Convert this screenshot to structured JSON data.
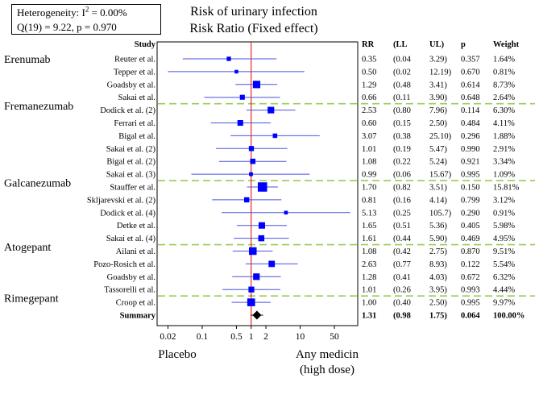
{
  "heterogeneity": {
    "line1_prefix": "Heterogeneity: I",
    "line1_sup": "2",
    "line1_suffix": " = 0.00%",
    "line2": "Q(19) = 9.22,  p = 0.970"
  },
  "title": {
    "line1": "Risk of urinary infection",
    "line2": "Risk Ratio (Fixed effect)"
  },
  "columns": {
    "study": "Study",
    "rr": "RR",
    "ll": "(LL",
    "ul": "UL)",
    "p": "p",
    "weight": "Weight"
  },
  "bottom_labels": {
    "left": "Placebo",
    "right_line1": "Any medicin",
    "right_line2": "(high dose)"
  },
  "colors": {
    "marker": "#0000ff",
    "ci_line": "#4a55dd",
    "reference_line": "#dd0000",
    "group_divider": "#99cc55",
    "summary": "#000000"
  },
  "chart_data": {
    "type": "forest",
    "title": "Risk of urinary infection — Risk Ratio (Fixed effect)",
    "xscale": "log",
    "xlim": [
      0.012,
      150
    ],
    "xticks": [
      0.02,
      0.1,
      0.5,
      1,
      2,
      10,
      50
    ],
    "xtick_labels": [
      "0.02",
      "0.1",
      "0.5",
      "1",
      "2",
      "10",
      "50"
    ],
    "reference_value": 1,
    "groups": [
      {
        "name": "Erenumab",
        "start_row": 0
      },
      {
        "name": "Fremanezumab",
        "start_row": 4
      },
      {
        "name": "Galcanezumab",
        "start_row": 10
      },
      {
        "name": "Atogepant",
        "start_row": 15
      },
      {
        "name": "Rimegepant",
        "start_row": 19
      }
    ],
    "studies": [
      {
        "study": "Reuter et al.",
        "rr": 0.35,
        "ll": 0.04,
        "ul": 3.29,
        "rr_txt": "0.35",
        "ll_txt": "(0.04",
        "ul_txt": "3.29)",
        "p_txt": "0.357",
        "weight_txt": "1.64%",
        "weight": 1.64
      },
      {
        "study": "Tepper et al.",
        "rr": 0.5,
        "ll": 0.02,
        "ul": 12.19,
        "rr_txt": "0.50",
        "ll_txt": "(0.02",
        "ul_txt": "12.19)",
        "p_txt": "0.670",
        "weight_txt": "0.81%",
        "weight": 0.81
      },
      {
        "study": "Goadsby et al.",
        "rr": 1.29,
        "ll": 0.48,
        "ul": 3.41,
        "rr_txt": "1.29",
        "ll_txt": "(0.48",
        "ul_txt": "3.41)",
        "p_txt": "0.614",
        "weight_txt": "8.73%",
        "weight": 8.73
      },
      {
        "study": "Sakai et al.",
        "rr": 0.66,
        "ll": 0.11,
        "ul": 3.9,
        "rr_txt": "0.66",
        "ll_txt": "(0.11",
        "ul_txt": "3.90)",
        "p_txt": "0.648",
        "weight_txt": "2.64%",
        "weight": 2.64
      },
      {
        "study": "Dodick et al. (2)",
        "rr": 2.53,
        "ll": 0.8,
        "ul": 7.96,
        "rr_txt": "2.53",
        "ll_txt": "(0.80",
        "ul_txt": "7.96)",
        "p_txt": "0.114",
        "weight_txt": "6.30%",
        "weight": 6.3
      },
      {
        "study": "Ferrari et al.",
        "rr": 0.6,
        "ll": 0.15,
        "ul": 2.5,
        "rr_txt": "0.60",
        "ll_txt": "(0.15",
        "ul_txt": "2.50)",
        "p_txt": "0.484",
        "weight_txt": "4.11%",
        "weight": 4.11
      },
      {
        "study": "Bigal et al.",
        "rr": 3.07,
        "ll": 0.38,
        "ul": 25.1,
        "rr_txt": "3.07",
        "ll_txt": "(0.38",
        "ul_txt": "25.10)",
        "p_txt": "0.296",
        "weight_txt": "1.88%",
        "weight": 1.88
      },
      {
        "study": "Sakai et al. (2)",
        "rr": 1.01,
        "ll": 0.19,
        "ul": 5.47,
        "rr_txt": "1.01",
        "ll_txt": "(0.19",
        "ul_txt": "5.47)",
        "p_txt": "0.990",
        "weight_txt": "2.91%",
        "weight": 2.91
      },
      {
        "study": "Bigal et al. (2)",
        "rr": 1.08,
        "ll": 0.22,
        "ul": 5.24,
        "rr_txt": "1.08",
        "ll_txt": "(0.22",
        "ul_txt": "5.24)",
        "p_txt": "0.921",
        "weight_txt": "3.34%",
        "weight": 3.34
      },
      {
        "study": "Sakai et al. (3)",
        "rr": 0.99,
        "ll": 0.06,
        "ul": 15.67,
        "rr_txt": "0.99",
        "ll_txt": "(0.06",
        "ul_txt": "15.67)",
        "p_txt": "0.995",
        "weight_txt": "1.09%",
        "weight": 1.09
      },
      {
        "study": "Stauffer et al.",
        "rr": 1.7,
        "ll": 0.82,
        "ul": 3.51,
        "rr_txt": "1.70",
        "ll_txt": "(0.82",
        "ul_txt": "3.51)",
        "p_txt": "0.150",
        "weight_txt": "15.81%",
        "weight": 15.81
      },
      {
        "study": "Skljarevski et al. (2)",
        "rr": 0.81,
        "ll": 0.16,
        "ul": 4.14,
        "rr_txt": "0.81",
        "ll_txt": "(0.16",
        "ul_txt": "4.14)",
        "p_txt": "0.799",
        "weight_txt": "3.12%",
        "weight": 3.12
      },
      {
        "study": "Dodick et al. (4)",
        "rr": 5.13,
        "ll": 0.25,
        "ul": 105.7,
        "rr_txt": "5.13",
        "ll_txt": "(0.25",
        "ul_txt": "105.7)",
        "p_txt": "0.290",
        "weight_txt": "0.91%",
        "weight": 0.91
      },
      {
        "study": "Detke et al.",
        "rr": 1.65,
        "ll": 0.51,
        "ul": 5.36,
        "rr_txt": "1.65",
        "ll_txt": "(0.51",
        "ul_txt": "5.36)",
        "p_txt": "0.405",
        "weight_txt": "5.98%",
        "weight": 5.98
      },
      {
        "study": "Sakai et al. (4)",
        "rr": 1.61,
        "ll": 0.44,
        "ul": 5.9,
        "rr_txt": "1.61",
        "ll_txt": "(0.44",
        "ul_txt": "5.90)",
        "p_txt": "0.469",
        "weight_txt": "4.95%",
        "weight": 4.95
      },
      {
        "study": "Ailani et al.",
        "rr": 1.08,
        "ll": 0.42,
        "ul": 2.75,
        "rr_txt": "1.08",
        "ll_txt": "(0.42",
        "ul_txt": "2.75)",
        "p_txt": "0.870",
        "weight_txt": "9.51%",
        "weight": 9.51
      },
      {
        "study": "Pozo-Rosich et al.",
        "rr": 2.63,
        "ll": 0.77,
        "ul": 8.93,
        "rr_txt": "2.63",
        "ll_txt": "(0.77",
        "ul_txt": "8.93)",
        "p_txt": "0.122",
        "weight_txt": "5.54%",
        "weight": 5.54
      },
      {
        "study": "Goadsby et al.",
        "rr": 1.28,
        "ll": 0.41,
        "ul": 4.03,
        "rr_txt": "1.28",
        "ll_txt": "(0.41",
        "ul_txt": "4.03)",
        "p_txt": "0.672",
        "weight_txt": "6.32%",
        "weight": 6.32
      },
      {
        "study": "Tassorelli et al.",
        "rr": 1.01,
        "ll": 0.26,
        "ul": 3.95,
        "rr_txt": "1.01",
        "ll_txt": "(0.26",
        "ul_txt": "3.95)",
        "p_txt": "0.993",
        "weight_txt": "4.44%",
        "weight": 4.44
      },
      {
        "study": "Croop et al.",
        "rr": 1.0,
        "ll": 0.4,
        "ul": 2.5,
        "rr_txt": "1.00",
        "ll_txt": "(0.40",
        "ul_txt": "2.50)",
        "p_txt": "0.995",
        "weight_txt": "9.97%",
        "weight": 9.97
      }
    ],
    "summary": {
      "label": "Summary",
      "rr": 1.31,
      "ll": 0.98,
      "ul": 1.75,
      "rr_txt": "1.31",
      "ll_txt": "(0.98",
      "ul_txt": "1.75)",
      "p_txt": "0.064",
      "weight_txt": "100.00%"
    }
  }
}
